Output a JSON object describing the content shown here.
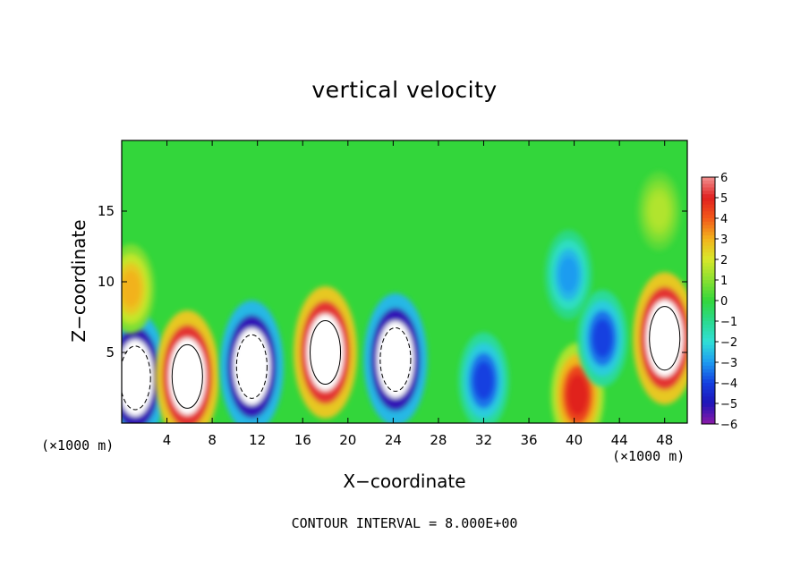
{
  "chart_data": {
    "type": "heatmap",
    "title": "vertical velocity",
    "xlabel": "X−coordinate",
    "ylabel": "Z−coordinate",
    "x_unit": "(×1000 m)",
    "footnote": "CONTOUR INTERVAL = 8.000E+00",
    "xlim": [
      0,
      50
    ],
    "ylim": [
      0,
      20
    ],
    "x_ticks": [
      4,
      8,
      12,
      16,
      20,
      24,
      28,
      32,
      36,
      40,
      44,
      48
    ],
    "y_ticks": [
      5,
      10,
      15
    ],
    "colorbar": {
      "range": [
        -6,
        6
      ],
      "ticks": [
        6,
        5,
        4,
        3,
        2,
        1,
        0,
        -1,
        -2,
        -3,
        -4,
        -5,
        -6
      ],
      "labels": [
        "6",
        "5",
        "4",
        "3",
        "2",
        "1",
        "0",
        "−1",
        "−2",
        "−3",
        "−4",
        "−5",
        "−6"
      ]
    },
    "cells": [
      {
        "x": 1.2,
        "z": 3.2,
        "value": -9
      },
      {
        "x": 5.8,
        "z": 3.3,
        "value": 9
      },
      {
        "x": 11.5,
        "z": 4.0,
        "value": -9
      },
      {
        "x": 18.0,
        "z": 5.0,
        "value": 9
      },
      {
        "x": 24.2,
        "z": 4.5,
        "value": -9
      },
      {
        "x": 32.0,
        "z": 3.0,
        "value": -4
      },
      {
        "x": 40.3,
        "z": 2.0,
        "value": 5
      },
      {
        "x": 42.5,
        "z": 6.0,
        "value": -4
      },
      {
        "x": 48.0,
        "z": 6.0,
        "value": 9
      },
      {
        "x": 0.8,
        "z": 9.5,
        "value": 3
      },
      {
        "x": 39.5,
        "z": 10.5,
        "value": -3
      },
      {
        "x": 47.5,
        "z": 15.0,
        "value": 1.5
      }
    ]
  }
}
